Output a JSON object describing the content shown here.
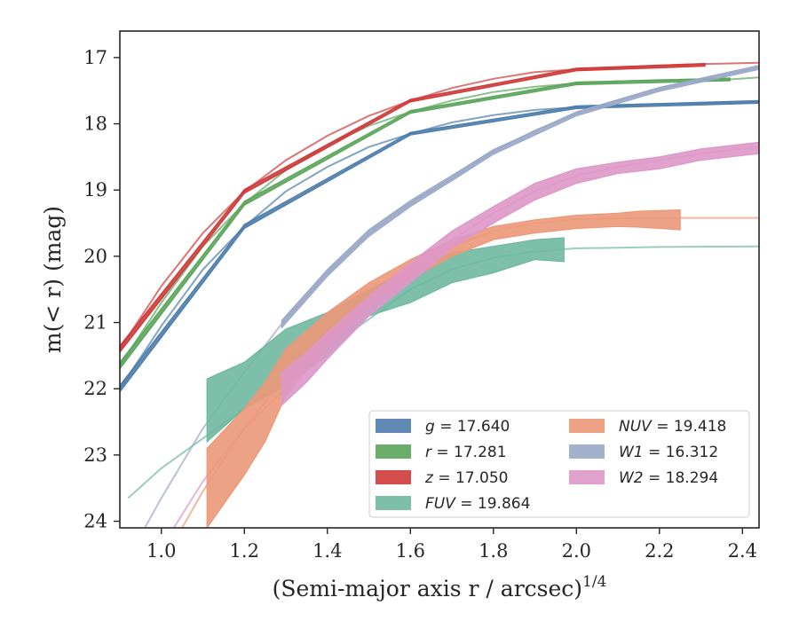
{
  "chart_data": {
    "type": "line",
    "xlabel": "(Semi-major axis r / arcsec)",
    "xlabel_exponent": "1/4",
    "ylabel": "m(< r) (mag)",
    "xlim": [
      0.9,
      2.44
    ],
    "ylim": [
      24.1,
      16.6
    ],
    "y_inverted": true,
    "x_ticks": [
      1.0,
      1.2,
      1.4,
      1.6,
      1.8,
      2.0,
      2.2,
      2.4
    ],
    "x_tick_labels": [
      "1.0",
      "1.2",
      "1.4",
      "1.6",
      "1.8",
      "2.0",
      "2.2",
      "2.4"
    ],
    "y_ticks": [
      17,
      18,
      19,
      20,
      21,
      22,
      23,
      24
    ],
    "y_tick_labels": [
      "17",
      "18",
      "19",
      "20",
      "21",
      "22",
      "23",
      "24"
    ],
    "grid": false,
    "legend_position": "lower-right",
    "legend_ncol": 2,
    "series": [
      {
        "name": "g = 17.640",
        "label_var": "g",
        "label_val": "= 17.640",
        "color": "#4c7dab",
        "curve": [
          [
            0.9,
            22.0
          ],
          [
            1.0,
            21.05
          ],
          [
            1.1,
            20.2
          ],
          [
            1.2,
            19.55
          ],
          [
            1.3,
            19.02
          ],
          [
            1.4,
            18.65
          ],
          [
            1.5,
            18.35
          ],
          [
            1.6,
            18.15
          ],
          [
            1.7,
            17.98
          ],
          [
            1.8,
            17.87
          ],
          [
            1.9,
            17.79
          ],
          [
            2.0,
            17.75
          ],
          [
            2.1,
            17.72
          ],
          [
            2.2,
            17.7
          ],
          [
            2.3,
            17.69
          ],
          [
            2.44,
            17.67
          ]
        ],
        "band": [
          [
            0.9,
            21.95,
            22.05
          ],
          [
            1.2,
            19.52,
            19.58
          ],
          [
            1.6,
            18.13,
            18.17
          ],
          [
            2.0,
            17.73,
            17.77
          ],
          [
            2.44,
            17.65,
            17.69
          ]
        ]
      },
      {
        "name": "r = 17.281",
        "label_var": "r",
        "label_val": "= 17.281",
        "color": "#5ba55b",
        "curve": [
          [
            0.9,
            21.65
          ],
          [
            1.0,
            20.7
          ],
          [
            1.1,
            19.85
          ],
          [
            1.2,
            19.2
          ],
          [
            1.3,
            18.7
          ],
          [
            1.4,
            18.32
          ],
          [
            1.5,
            18.03
          ],
          [
            1.6,
            17.82
          ],
          [
            1.7,
            17.65
          ],
          [
            1.8,
            17.52
          ],
          [
            1.9,
            17.44
          ],
          [
            2.0,
            17.39
          ],
          [
            2.1,
            17.36
          ],
          [
            2.2,
            17.34
          ],
          [
            2.3,
            17.33
          ],
          [
            2.37,
            17.33
          ],
          [
            2.44,
            17.3
          ]
        ],
        "band": [
          [
            0.9,
            21.6,
            21.7
          ],
          [
            1.2,
            19.17,
            19.23
          ],
          [
            1.6,
            17.8,
            17.84
          ],
          [
            2.0,
            17.37,
            17.41
          ],
          [
            2.37,
            17.31,
            17.35
          ]
        ]
      },
      {
        "name": "z = 17.050",
        "label_var": "z",
        "label_val": "= 17.050",
        "color": "#cf3a3a",
        "curve": [
          [
            0.9,
            21.4
          ],
          [
            1.0,
            20.45
          ],
          [
            1.1,
            19.65
          ],
          [
            1.2,
            19.02
          ],
          [
            1.3,
            18.55
          ],
          [
            1.4,
            18.18
          ],
          [
            1.5,
            17.88
          ],
          [
            1.6,
            17.65
          ],
          [
            1.7,
            17.46
          ],
          [
            1.8,
            17.32
          ],
          [
            1.9,
            17.22
          ],
          [
            2.0,
            17.18
          ],
          [
            2.1,
            17.15
          ],
          [
            2.2,
            17.12
          ],
          [
            2.3,
            17.1
          ],
          [
            2.44,
            17.08
          ]
        ],
        "band": [
          [
            0.9,
            21.35,
            21.45
          ],
          [
            1.2,
            18.99,
            19.05
          ],
          [
            1.6,
            17.63,
            17.67
          ],
          [
            2.0,
            17.16,
            17.2
          ],
          [
            2.31,
            17.09,
            17.13
          ]
        ]
      },
      {
        "name": "FUV = 19.864",
        "label_var": "FUV",
        "label_val": "= 19.864",
        "color": "#6fb8a0",
        "curve": [
          [
            0.92,
            23.65
          ],
          [
            1.0,
            23.2
          ],
          [
            1.1,
            22.75
          ],
          [
            1.2,
            22.3
          ],
          [
            1.3,
            21.85
          ],
          [
            1.4,
            21.4
          ],
          [
            1.5,
            20.95
          ],
          [
            1.6,
            20.5
          ],
          [
            1.7,
            20.2
          ],
          [
            1.8,
            20.02
          ],
          [
            1.9,
            19.93
          ],
          [
            2.0,
            19.88
          ],
          [
            2.1,
            19.87
          ],
          [
            2.2,
            19.86
          ],
          [
            2.44,
            19.85
          ]
        ],
        "band": [
          [
            1.11,
            21.85,
            22.8
          ],
          [
            1.2,
            21.6,
            22.3
          ],
          [
            1.3,
            21.1,
            21.95
          ],
          [
            1.4,
            20.85,
            21.5
          ],
          [
            1.5,
            20.5,
            20.9
          ],
          [
            1.6,
            20.2,
            20.7
          ],
          [
            1.7,
            19.95,
            20.4
          ],
          [
            1.8,
            19.85,
            20.25
          ],
          [
            1.9,
            19.75,
            20.05
          ],
          [
            1.97,
            19.72,
            20.08
          ]
        ]
      },
      {
        "name": "NUV = 19.418",
        "label_var": "NUV",
        "label_val": "= 19.418",
        "color": "#ec9878",
        "curve": [
          [
            1.05,
            24.1
          ],
          [
            1.1,
            23.55
          ],
          [
            1.2,
            22.6
          ],
          [
            1.3,
            21.8
          ],
          [
            1.4,
            21.1
          ],
          [
            1.5,
            20.55
          ],
          [
            1.6,
            20.15
          ],
          [
            1.7,
            19.85
          ],
          [
            1.8,
            19.62
          ],
          [
            1.9,
            19.5
          ],
          [
            2.0,
            19.44
          ],
          [
            2.1,
            19.43
          ],
          [
            2.2,
            19.42
          ],
          [
            2.44,
            19.42
          ]
        ],
        "band": [
          [
            1.11,
            22.9,
            24.1
          ],
          [
            1.2,
            22.3,
            23.3
          ],
          [
            1.25,
            21.9,
            22.8
          ],
          [
            1.3,
            21.4,
            22.1
          ],
          [
            1.4,
            20.85,
            21.35
          ],
          [
            1.5,
            20.4,
            20.75
          ],
          [
            1.6,
            20.05,
            20.35
          ],
          [
            1.7,
            19.75,
            20.0
          ],
          [
            1.8,
            19.55,
            19.75
          ],
          [
            1.9,
            19.45,
            19.65
          ],
          [
            2.0,
            19.38,
            19.58
          ],
          [
            2.1,
            19.35,
            19.55
          ],
          [
            2.15,
            19.32,
            19.56
          ],
          [
            2.25,
            19.3,
            19.6
          ]
        ]
      },
      {
        "name": "W1 = 16.312",
        "label_var": "W1",
        "label_val": "= 16.312",
        "color": "#9aa8c8",
        "curve": [
          [
            0.96,
            24.1
          ],
          [
            1.0,
            23.65
          ],
          [
            1.1,
            22.6
          ],
          [
            1.2,
            21.75
          ],
          [
            1.29,
            21.02
          ],
          [
            1.4,
            20.25
          ],
          [
            1.5,
            19.65
          ],
          [
            1.6,
            19.2
          ],
          [
            1.7,
            18.82
          ],
          [
            1.8,
            18.42
          ],
          [
            1.9,
            18.1
          ],
          [
            2.0,
            17.85
          ],
          [
            2.1,
            17.65
          ],
          [
            2.2,
            17.48
          ],
          [
            2.3,
            17.33
          ],
          [
            2.44,
            17.15
          ]
        ],
        "band": [
          [
            1.29,
            20.97,
            21.08
          ],
          [
            1.4,
            20.2,
            20.3
          ],
          [
            1.5,
            19.6,
            19.7
          ],
          [
            1.6,
            19.16,
            19.25
          ],
          [
            1.7,
            18.78,
            18.86
          ],
          [
            1.8,
            18.39,
            18.46
          ],
          [
            2.0,
            17.82,
            17.88
          ],
          [
            2.2,
            17.45,
            17.51
          ],
          [
            2.44,
            17.12,
            17.18
          ]
        ]
      },
      {
        "name": "W2 = 18.294",
        "label_var": "W2",
        "label_val": "= 18.294",
        "color": "#dd97c8",
        "curve": [
          [
            1.03,
            24.1
          ],
          [
            1.1,
            23.4
          ],
          [
            1.2,
            22.6
          ],
          [
            1.29,
            22.05
          ],
          [
            1.4,
            21.35
          ],
          [
            1.5,
            20.75
          ],
          [
            1.6,
            20.25
          ],
          [
            1.7,
            19.75
          ],
          [
            1.8,
            19.35
          ],
          [
            1.9,
            19.02
          ],
          [
            2.0,
            18.78
          ],
          [
            2.1,
            18.65
          ],
          [
            2.2,
            18.55
          ],
          [
            2.3,
            18.45
          ],
          [
            2.44,
            18.35
          ]
        ],
        "band": [
          [
            1.29,
            21.75,
            22.25
          ],
          [
            1.35,
            21.45,
            21.9
          ],
          [
            1.4,
            21.15,
            21.55
          ],
          [
            1.5,
            20.6,
            20.9
          ],
          [
            1.6,
            20.1,
            20.4
          ],
          [
            1.7,
            19.62,
            19.88
          ],
          [
            1.8,
            19.25,
            19.5
          ],
          [
            1.9,
            18.9,
            19.15
          ],
          [
            2.0,
            18.68,
            18.9
          ],
          [
            2.1,
            18.58,
            18.75
          ],
          [
            2.2,
            18.5,
            18.68
          ],
          [
            2.3,
            18.38,
            18.55
          ],
          [
            2.44,
            18.28,
            18.45
          ]
        ]
      }
    ]
  }
}
